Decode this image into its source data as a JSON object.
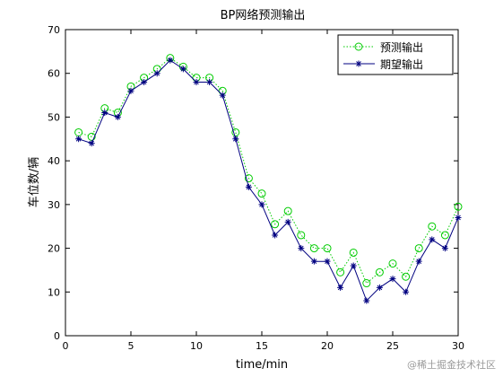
{
  "chart_data": {
    "type": "line",
    "title": "BP网络预测输出",
    "xlabel": "time/min",
    "ylabel": "车位数/辆",
    "xlim": [
      0,
      30
    ],
    "ylim": [
      0,
      70
    ],
    "xticks": [
      0,
      5,
      10,
      15,
      20,
      25,
      30
    ],
    "yticks": [
      0,
      10,
      20,
      30,
      40,
      50,
      60,
      70
    ],
    "grid": false,
    "legend_position": "top-right",
    "x": [
      1,
      2,
      3,
      4,
      5,
      6,
      7,
      8,
      9,
      10,
      11,
      12,
      13,
      14,
      15,
      16,
      17,
      18,
      19,
      20,
      21,
      22,
      23,
      24,
      25,
      26,
      27,
      28,
      29,
      30
    ],
    "series": [
      {
        "name": "预测输出",
        "style": "dotted line with circle markers",
        "color": "#00cc00",
        "values": [
          46.5,
          45.5,
          52,
          51,
          57,
          59,
          61,
          63.5,
          61.5,
          59,
          59,
          56,
          46.5,
          36,
          32.5,
          25.5,
          28.5,
          23,
          20,
          20,
          14.5,
          19,
          12,
          14.5,
          16.5,
          13.5,
          20,
          25,
          23,
          29.5
        ]
      },
      {
        "name": "期望输出",
        "style": "solid line with star markers",
        "color": "#000080",
        "values": [
          45,
          44,
          51,
          50,
          56,
          58,
          60,
          63,
          61,
          58,
          58,
          55,
          45,
          34,
          30,
          23,
          26,
          20,
          17,
          17,
          11,
          16,
          8,
          11,
          13,
          10,
          17,
          22,
          20,
          27
        ]
      }
    ]
  },
  "watermark": "@稀土掘金技术社区"
}
